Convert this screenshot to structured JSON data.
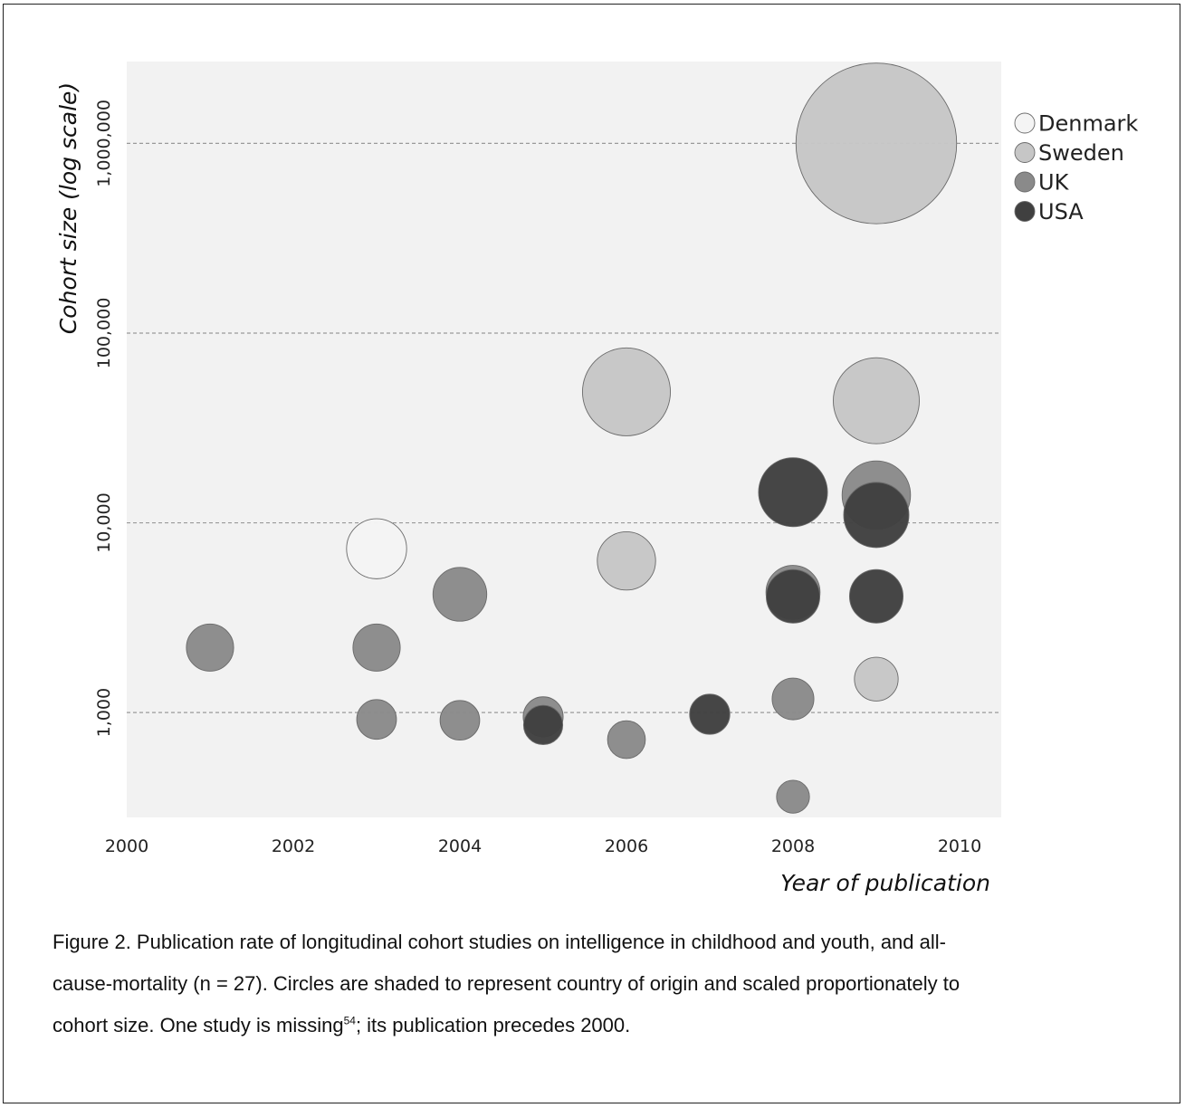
{
  "chart_data": {
    "type": "scatter",
    "xlabel": "Year of publication",
    "ylabel": "Cohort size (log scale)",
    "x_scale": "linear",
    "y_scale": "log",
    "xlim": [
      2000,
      2010.5
    ],
    "ylim": [
      280,
      2700000
    ],
    "x_ticks": [
      2000,
      2002,
      2004,
      2006,
      2008,
      2010
    ],
    "x_tick_labels": [
      "2000",
      "2002",
      "2004",
      "2006",
      "2008",
      "2010"
    ],
    "y_ticks": [
      1000,
      10000,
      100000,
      1000000
    ],
    "y_tick_labels": [
      "1,000",
      "10,000",
      "100,000",
      "1,000,000"
    ],
    "grid": "horizontal dashed at y ticks",
    "legend_position": "right",
    "bubble_size": "proportional to cohort size",
    "series": [
      {
        "name": "Denmark",
        "color": "#f4f4f4",
        "points": [
          {
            "x": 2003,
            "y": 7300
          }
        ]
      },
      {
        "name": "Sweden",
        "color": "#c6c6c6",
        "points": [
          {
            "x": 2009,
            "y": 1000000
          },
          {
            "x": 2006,
            "y": 49000
          },
          {
            "x": 2009,
            "y": 44000
          },
          {
            "x": 2006,
            "y": 6300
          },
          {
            "x": 2009,
            "y": 1500
          }
        ]
      },
      {
        "name": "UK",
        "color": "#8a8a8a",
        "points": [
          {
            "x": 2009,
            "y": 14000
          },
          {
            "x": 2004,
            "y": 4200
          },
          {
            "x": 2008,
            "y": 4300
          },
          {
            "x": 2001,
            "y": 2200
          },
          {
            "x": 2003,
            "y": 2200
          },
          {
            "x": 2008,
            "y": 1180
          },
          {
            "x": 2003,
            "y": 920
          },
          {
            "x": 2004,
            "y": 910
          },
          {
            "x": 2005,
            "y": 950
          },
          {
            "x": 2006,
            "y": 720
          },
          {
            "x": 2008,
            "y": 360
          }
        ]
      },
      {
        "name": "USA",
        "color": "#404040",
        "points": [
          {
            "x": 2008,
            "y": 14500
          },
          {
            "x": 2009,
            "y": 11000
          },
          {
            "x": 2008,
            "y": 4100
          },
          {
            "x": 2009,
            "y": 4100
          },
          {
            "x": 2007,
            "y": 980
          },
          {
            "x": 2005,
            "y": 860
          }
        ]
      }
    ]
  },
  "caption": {
    "line1": "Figure 2. Publication rate of longitudinal cohort studies on intelligence in childhood and youth, and all-",
    "line2": "cause-mortality (n = 27). Circles are shaded to represent country of origin and scaled proportionately to",
    "line3_before": "cohort size. One study is missing",
    "line3_ref": "54",
    "line3_after": "; its publication precedes 2000."
  }
}
